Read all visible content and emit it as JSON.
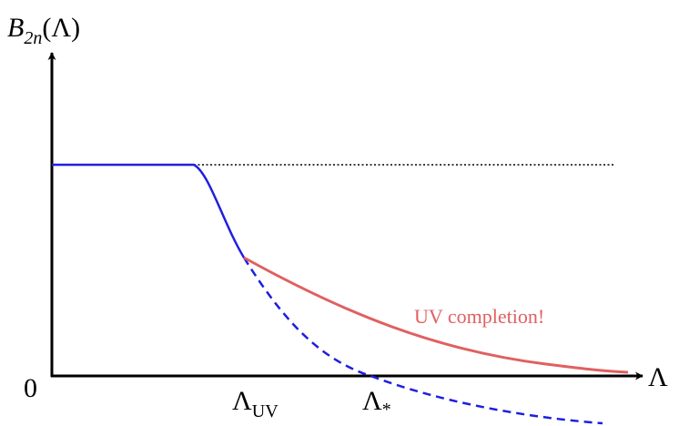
{
  "y_axis_label": {
    "base": "B",
    "sub": "2n",
    "rest": "(Λ)"
  },
  "x_axis_label": "Λ",
  "origin_label": "0",
  "x_marks": [
    {
      "base": "Λ",
      "sub": "UV"
    },
    {
      "base": "Λ",
      "sub": "*"
    }
  ],
  "annotation": "UV completion!"
}
